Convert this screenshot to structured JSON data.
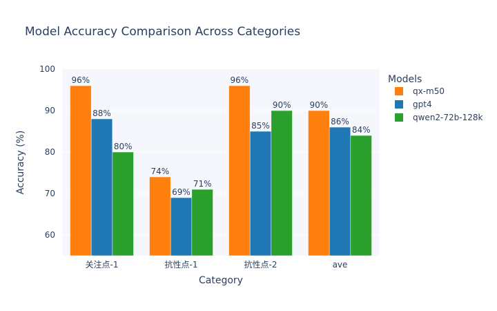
{
  "chart_data": {
    "type": "bar",
    "title": "Model Accuracy Comparison Across Categories",
    "xlabel": "Category",
    "ylabel": "Accuracy (%)",
    "ylim": [
      55,
      100
    ],
    "yticks": [
      60,
      70,
      80,
      90,
      100
    ],
    "grid": true,
    "categories": [
      "关注点-1",
      "抗性点-1",
      "抗性点-2",
      "ave"
    ],
    "series": [
      {
        "name": "qx-m50",
        "values": [
          96,
          74,
          96,
          90
        ],
        "color": "#ff7f0e",
        "labels": [
          "96%",
          "74%",
          "96%",
          "90%"
        ]
      },
      {
        "name": "gpt4",
        "values": [
          88,
          69,
          85,
          86
        ],
        "color": "#1f77b4",
        "labels": [
          "88%",
          "69%",
          "85%",
          "86%"
        ]
      },
      {
        "name": "qwen2-72b-128k",
        "values": [
          80,
          71,
          90,
          84
        ],
        "color": "#2ca02c",
        "labels": [
          "80%",
          "71%",
          "90%",
          "84%"
        ]
      }
    ],
    "legend": {
      "title": "Models",
      "placement": "right"
    },
    "plot_background": "#f5f7fd"
  }
}
